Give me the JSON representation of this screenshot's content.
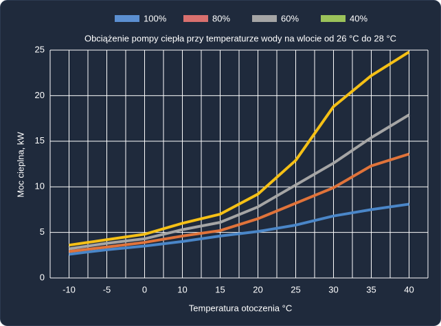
{
  "chart_data": {
    "type": "line",
    "title": "Obciążenie pompy ciepła przy temperaturze wody na wlocie od 26 °C do 28 °C",
    "xlabel": "Temperatura otoczenia °C",
    "ylabel": "Moc cieplna, kW",
    "categories": [
      "-10",
      "-5",
      "0",
      "10",
      "15",
      "20",
      "25",
      "30",
      "35",
      "40"
    ],
    "series": [
      {
        "name": "100%",
        "color": "#4a86c8",
        "legend_color": "#5b8fd1",
        "values": [
          2.6,
          3.1,
          3.5,
          4.0,
          4.6,
          5.1,
          5.8,
          6.8,
          7.5,
          8.1
        ]
      },
      {
        "name": "80%",
        "color": "#e0733a",
        "legend_color": "#d9706e",
        "values": [
          2.9,
          3.4,
          3.9,
          4.6,
          5.2,
          6.5,
          8.2,
          9.9,
          12.3,
          13.6
        ]
      },
      {
        "name": "60%",
        "color": "#a5a5a5",
        "legend_color": "#a5a5a5",
        "values": [
          3.2,
          3.8,
          4.3,
          5.3,
          6.1,
          7.8,
          10.2,
          12.6,
          15.4,
          17.9
        ]
      },
      {
        "name": "40%",
        "color": "#f5c016",
        "legend_color": "#9bc25a",
        "values": [
          3.6,
          4.2,
          4.8,
          6.0,
          7.0,
          9.2,
          12.9,
          18.8,
          22.2,
          24.8
        ]
      }
    ],
    "ylim": [
      0,
      25
    ],
    "yticks": [
      0,
      5,
      10,
      15,
      20,
      25
    ],
    "grid": true,
    "legend": "top"
  }
}
